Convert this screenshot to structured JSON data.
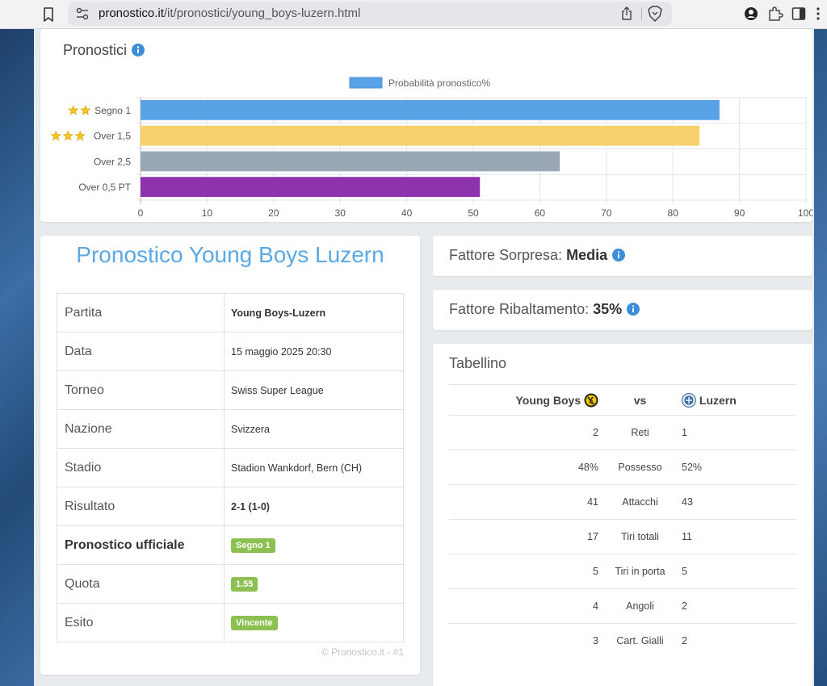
{
  "browser": {
    "url_host": "pronostico.it",
    "url_path": "/it/pronostici/young_boys-luzern.html"
  },
  "chart": {
    "title": "Pronostici"
  },
  "chart_data": {
    "type": "bar",
    "orientation": "horizontal",
    "legend": "Probabilità pronostico%",
    "legend_position": "top-center",
    "categories": [
      "Segno 1",
      "Over 1,5",
      "Over 2,5",
      "Over 0,5 PT"
    ],
    "stars": [
      2,
      3,
      0,
      0
    ],
    "values": [
      87,
      84,
      63,
      51
    ],
    "colors": [
      "#5aa2e6",
      "#f7d06e",
      "#9aa8b5",
      "#8e33ae"
    ],
    "xlim": [
      0,
      100
    ],
    "xticks": [
      0,
      10,
      20,
      30,
      40,
      50,
      60,
      70,
      80,
      90,
      100
    ],
    "grid": true
  },
  "details": {
    "title": "Pronostico Young Boys Luzern",
    "rows": [
      {
        "label": "Partita",
        "value": "Young Boys-Luzern"
      },
      {
        "label": "Data",
        "value": "15 maggio 2025 20:30"
      },
      {
        "label": "Torneo",
        "value": "Swiss Super League"
      },
      {
        "label": "Nazione",
        "value": "Svizzera"
      },
      {
        "label": "Stadio",
        "value": "Stadion Wankdorf, Bern (CH)"
      },
      {
        "label": "Risultato",
        "value": "2-1 (1-0)"
      },
      {
        "label": "Pronostico ufficiale",
        "value": "Segno 1"
      },
      {
        "label": "Quota",
        "value": "1.55"
      },
      {
        "label": "Esito",
        "value": "Vincente"
      }
    ],
    "footer": "© Pronostico.it - #1",
    "badge_color": "#8cc152"
  },
  "sorpresa": {
    "label": "Fattore Sorpresa:",
    "value": "Media"
  },
  "ribaltamento": {
    "label": "Fattore Ribaltamento:",
    "value": "35%"
  },
  "tabellino": {
    "title": "Tabellino",
    "home": "Young Boys",
    "vs": "vs",
    "away": "Luzern",
    "rows": [
      {
        "home": "2",
        "stat": "Reti",
        "away": "1"
      },
      {
        "home": "48%",
        "stat": "Possesso",
        "away": "52%"
      },
      {
        "home": "41",
        "stat": "Attacchi",
        "away": "43"
      },
      {
        "home": "17",
        "stat": "Tiri totali",
        "away": "11"
      },
      {
        "home": "5",
        "stat": "Tiri in porta",
        "away": "5"
      },
      {
        "home": "4",
        "stat": "Angoli",
        "away": "2"
      },
      {
        "home": "3",
        "stat": "Cart. Gialli",
        "away": "2"
      }
    ]
  },
  "colors": {
    "accent": "#5aa9e6",
    "info": "#3d8ed8"
  }
}
